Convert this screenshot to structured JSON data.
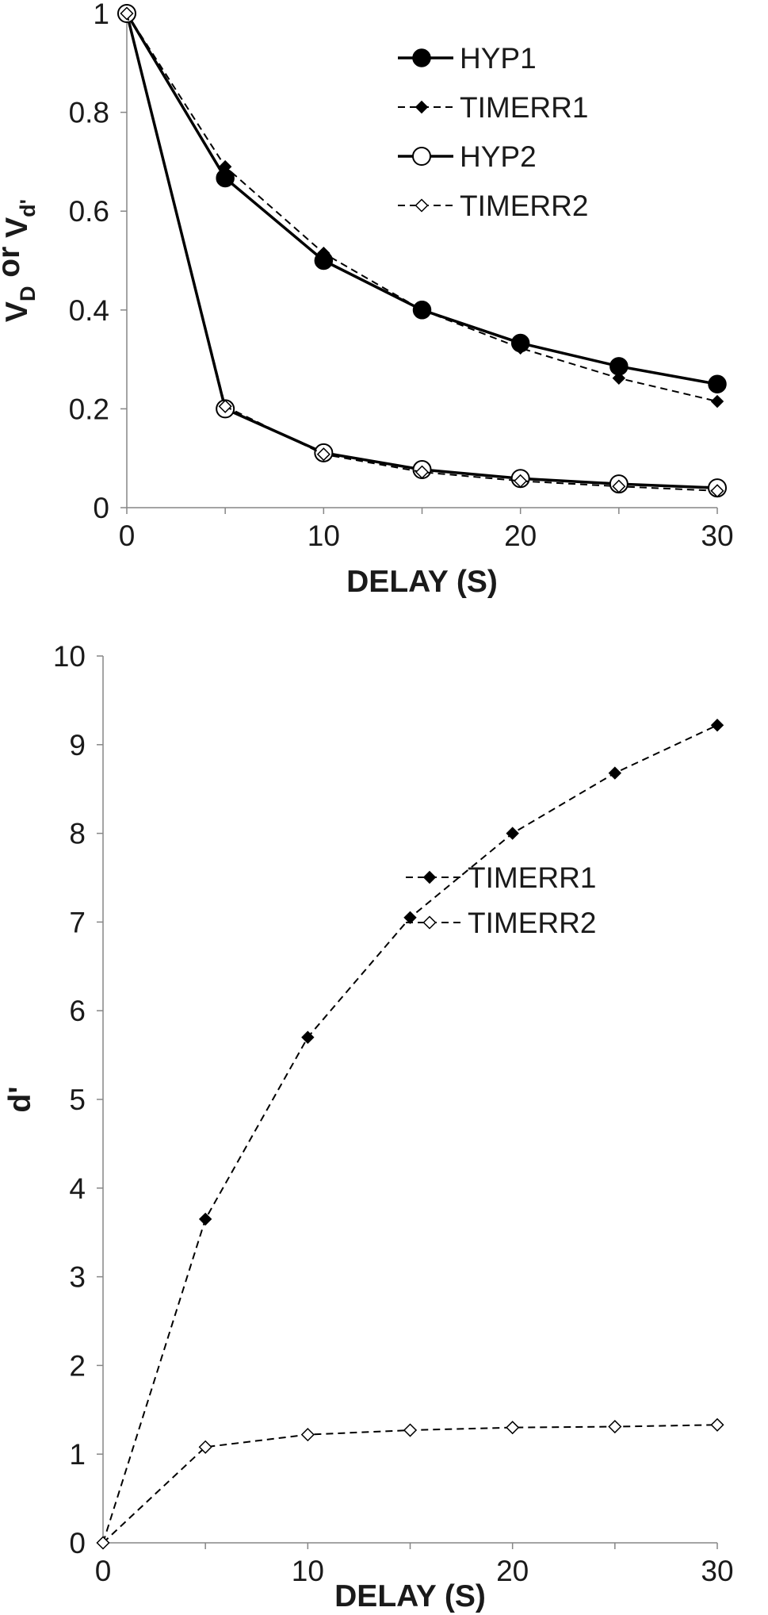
{
  "chart_data": [
    {
      "type": "line",
      "xlabel": "DELAY (S)",
      "ylabel": {
        "base_1": "V",
        "sub_1": "D",
        "middle": " or ",
        "base_2": "V",
        "sub_2": "d'"
      },
      "xlim": [
        0,
        30
      ],
      "ylim": [
        0,
        1
      ],
      "xticks": [
        "0",
        "10",
        "20",
        "30"
      ],
      "yticks": [
        "0",
        "0.2",
        "0.4",
        "0.6",
        "0.8",
        "1"
      ],
      "grid": false,
      "legend_position": "top-right",
      "x": [
        0,
        5,
        10,
        15,
        20,
        25,
        30
      ],
      "series": [
        {
          "name": "HYP1",
          "line": "solid",
          "marker": "circle-filled",
          "values": [
            1,
            0.667,
            0.5,
            0.4,
            0.333,
            0.286,
            0.25
          ]
        },
        {
          "name": "TIMERR1",
          "line": "dashed",
          "marker": "diamond-filled",
          "values": [
            1,
            0.69,
            0.515,
            0.4,
            0.323,
            0.262,
            0.215
          ]
        },
        {
          "name": "HYP2",
          "line": "solid",
          "marker": "circle-open",
          "values": [
            1,
            0.2,
            0.111,
            0.077,
            0.059,
            0.048,
            0.04
          ]
        },
        {
          "name": "TIMERR2",
          "line": "dashed",
          "marker": "diamond-open",
          "values": [
            1,
            0.205,
            0.108,
            0.072,
            0.054,
            0.043,
            0.034
          ]
        }
      ]
    },
    {
      "type": "line",
      "xlabel": "DELAY (S)",
      "ylabel": "d'",
      "xlim": [
        0,
        30
      ],
      "ylim": [
        0,
        10
      ],
      "xticks": [
        "0",
        "10",
        "20",
        "30"
      ],
      "yticks": [
        "0",
        "1",
        "2",
        "3",
        "4",
        "5",
        "6",
        "7",
        "8",
        "9",
        "10"
      ],
      "grid": false,
      "legend_position": "right",
      "x": [
        0,
        5,
        10,
        15,
        20,
        25,
        30
      ],
      "series": [
        {
          "name": "TIMERR1",
          "line": "dashed",
          "marker": "diamond-filled",
          "values": [
            0,
            3.65,
            5.7,
            7.05,
            8.0,
            8.68,
            9.22
          ]
        },
        {
          "name": "TIMERR2",
          "line": "dashed",
          "marker": "diamond-open",
          "values": [
            0,
            1.08,
            1.22,
            1.27,
            1.3,
            1.31,
            1.33
          ]
        }
      ]
    }
  ]
}
